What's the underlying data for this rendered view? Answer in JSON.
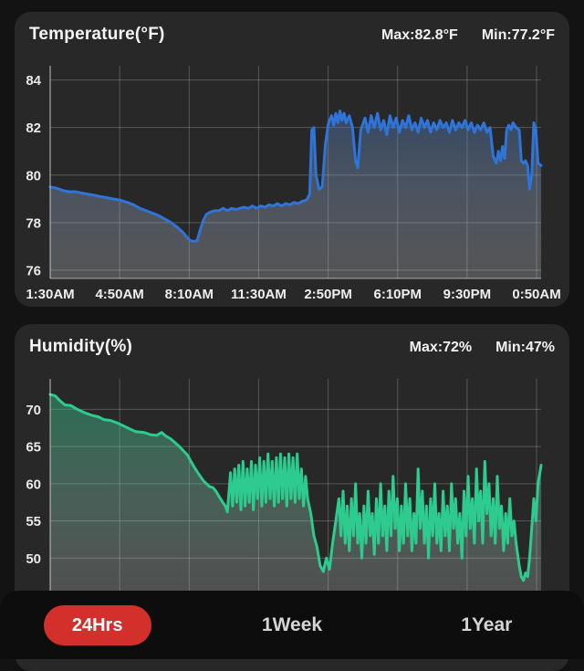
{
  "page": {
    "background": "#131313",
    "card_background": "#282828",
    "tabbar_background": "#0d0d0d"
  },
  "chart_data": [
    {
      "type": "area",
      "title": "Temperature(°F)",
      "max_label": "Max:82.8°F",
      "min_label": "Min:77.2°F",
      "line_color": "#2f74d8",
      "fill_top": "rgba(70,115,180,0.42)",
      "fill_bottom": "rgba(235,238,245,0.22)",
      "x_domain": [
        0,
        23.55
      ],
      "x_ticks": {
        "values": [
          0,
          3.333,
          6.667,
          10,
          13.333,
          16.667,
          20,
          23.333
        ],
        "labels": [
          "1:30AM",
          "4:50AM",
          "8:10AM",
          "11:30AM",
          "2:50PM",
          "6:10PM",
          "9:30PM",
          "0:50AM"
        ]
      },
      "y_domain": [
        75.65,
        84.6
      ],
      "y_ticks": [
        84,
        82,
        80,
        78,
        76
      ],
      "points": [
        [
          0,
          79.5
        ],
        [
          0.3,
          79.45
        ],
        [
          0.6,
          79.35
        ],
        [
          0.9,
          79.3
        ],
        [
          1.2,
          79.3
        ],
        [
          1.5,
          79.25
        ],
        [
          1.8,
          79.2
        ],
        [
          2.1,
          79.15
        ],
        [
          2.4,
          79.1
        ],
        [
          2.7,
          79.05
        ],
        [
          3,
          79
        ],
        [
          3.33,
          78.95
        ],
        [
          3.7,
          78.85
        ],
        [
          4,
          78.75
        ],
        [
          4.3,
          78.6
        ],
        [
          4.6,
          78.5
        ],
        [
          4.9,
          78.4
        ],
        [
          5.2,
          78.3
        ],
        [
          5.5,
          78.15
        ],
        [
          5.8,
          78
        ],
        [
          6.1,
          77.8
        ],
        [
          6.35,
          77.6
        ],
        [
          6.55,
          77.4
        ],
        [
          6.7,
          77.25
        ],
        [
          6.9,
          77.2
        ],
        [
          7.05,
          77.25
        ],
        [
          7.2,
          77.7
        ],
        [
          7.35,
          78.1
        ],
        [
          7.5,
          78.35
        ],
        [
          7.7,
          78.45
        ],
        [
          7.9,
          78.5
        ],
        [
          8.1,
          78.5
        ],
        [
          8.3,
          78.6
        ],
        [
          8.5,
          78.5
        ],
        [
          8.7,
          78.6
        ],
        [
          8.9,
          78.55
        ],
        [
          9.1,
          78.6
        ],
        [
          9.3,
          78.65
        ],
        [
          9.5,
          78.6
        ],
        [
          9.7,
          78.7
        ],
        [
          9.9,
          78.6
        ],
        [
          10.1,
          78.7
        ],
        [
          10.3,
          78.65
        ],
        [
          10.5,
          78.75
        ],
        [
          10.7,
          78.7
        ],
        [
          10.9,
          78.8
        ],
        [
          11.1,
          78.7
        ],
        [
          11.3,
          78.8
        ],
        [
          11.5,
          78.75
        ],
        [
          11.7,
          78.85
        ],
        [
          11.9,
          78.8
        ],
        [
          12.1,
          78.9
        ],
        [
          12.3,
          78.95
        ],
        [
          12.45,
          79.2
        ],
        [
          12.55,
          81.9
        ],
        [
          12.65,
          82
        ],
        [
          12.75,
          80
        ],
        [
          12.9,
          79.4
        ],
        [
          13.05,
          79.5
        ],
        [
          13.2,
          81.3
        ],
        [
          13.35,
          82.2
        ],
        [
          13.5,
          82.5
        ],
        [
          13.6,
          82.1
        ],
        [
          13.7,
          82.6
        ],
        [
          13.8,
          82.2
        ],
        [
          13.9,
          82.7
        ],
        [
          14,
          82.3
        ],
        [
          14.1,
          82.6
        ],
        [
          14.2,
          82.2
        ],
        [
          14.35,
          82.5
        ],
        [
          14.5,
          82
        ],
        [
          14.65,
          80.6
        ],
        [
          14.75,
          80.3
        ],
        [
          14.9,
          81.9
        ],
        [
          15.1,
          82.4
        ],
        [
          15.25,
          81.8
        ],
        [
          15.4,
          82.5
        ],
        [
          15.55,
          82
        ],
        [
          15.7,
          82.6
        ],
        [
          15.85,
          81.9
        ],
        [
          16,
          82.3
        ],
        [
          16.15,
          81.7
        ],
        [
          16.3,
          82.5
        ],
        [
          16.45,
          82
        ],
        [
          16.6,
          82.4
        ],
        [
          16.75,
          81.8
        ],
        [
          16.9,
          82.3
        ],
        [
          17.05,
          82
        ],
        [
          17.2,
          82.5
        ],
        [
          17.35,
          81.9
        ],
        [
          17.5,
          82.2
        ],
        [
          17.65,
          81.8
        ],
        [
          17.8,
          82.4
        ],
        [
          17.95,
          82
        ],
        [
          18.1,
          82.3
        ],
        [
          18.25,
          81.8
        ],
        [
          18.4,
          82.2
        ],
        [
          18.55,
          81.9
        ],
        [
          18.7,
          82.3
        ],
        [
          18.85,
          82
        ],
        [
          19,
          82.2
        ],
        [
          19.15,
          81.8
        ],
        [
          19.3,
          82.3
        ],
        [
          19.45,
          81.9
        ],
        [
          19.6,
          82.2
        ],
        [
          19.75,
          82
        ],
        [
          19.9,
          82.3
        ],
        [
          20.05,
          81.9
        ],
        [
          20.2,
          82.2
        ],
        [
          20.35,
          81.8
        ],
        [
          20.5,
          82.1
        ],
        [
          20.65,
          81.9
        ],
        [
          20.8,
          82.2
        ],
        [
          20.95,
          81.8
        ],
        [
          21.1,
          82
        ],
        [
          21.25,
          80.8
        ],
        [
          21.4,
          80.5
        ],
        [
          21.5,
          81
        ],
        [
          21.6,
          80.6
        ],
        [
          21.7,
          81.2
        ],
        [
          21.8,
          80.7
        ],
        [
          21.9,
          81.9
        ],
        [
          22,
          82.1
        ],
        [
          22.1,
          81.9
        ],
        [
          22.2,
          82.2
        ],
        [
          22.35,
          82
        ],
        [
          22.5,
          81.9
        ],
        [
          22.6,
          80.6
        ],
        [
          22.7,
          80.5
        ],
        [
          22.8,
          80.6
        ],
        [
          22.9,
          80.4
        ],
        [
          23,
          79.4
        ],
        [
          23.1,
          80
        ],
        [
          23.2,
          82.2
        ],
        [
          23.3,
          81.9
        ],
        [
          23.4,
          80.5
        ],
        [
          23.55,
          80.4
        ]
      ]
    },
    {
      "type": "area",
      "title": "Humidity(%)",
      "max_label": "Max:72%",
      "min_label": "Min:47%",
      "line_color": "#2ecb8e",
      "fill_top": "rgba(46,203,142,0.42)",
      "fill_bottom": "rgba(235,238,240,0.20)",
      "x_domain": [
        0,
        23.55
      ],
      "x_ticks": {
        "values": [
          0,
          3.333,
          6.667,
          10,
          13.333,
          16.667,
          20,
          23.333
        ],
        "labels": []
      },
      "y_domain": [
        45.5,
        74.1
      ],
      "y_ticks": [
        70,
        65,
        60,
        55,
        50
      ],
      "points": [
        [
          0,
          72
        ],
        [
          0.25,
          71.8
        ],
        [
          0.45,
          71.2
        ],
        [
          0.7,
          70.6
        ],
        [
          1,
          70.5
        ],
        [
          1.3,
          70
        ],
        [
          1.7,
          69.5
        ],
        [
          2,
          69.2
        ],
        [
          2.3,
          69
        ],
        [
          2.6,
          68.6
        ],
        [
          2.9,
          68.5
        ],
        [
          3.2,
          68.2
        ],
        [
          3.5,
          67.8
        ],
        [
          3.8,
          67.4
        ],
        [
          4.1,
          67
        ],
        [
          4.5,
          66.9
        ],
        [
          4.8,
          66.6
        ],
        [
          5.1,
          66.5
        ],
        [
          5.35,
          66.9
        ],
        [
          5.55,
          66.4
        ],
        [
          5.8,
          66
        ],
        [
          6,
          65.5
        ],
        [
          6.2,
          65
        ],
        [
          6.4,
          64.4
        ],
        [
          6.6,
          63.8
        ],
        [
          6.75,
          63
        ],
        [
          6.9,
          62.3
        ],
        [
          7.05,
          61.6
        ],
        [
          7.2,
          61
        ],
        [
          7.35,
          60.4
        ],
        [
          7.5,
          60
        ],
        [
          7.65,
          59.6
        ],
        [
          7.8,
          59.5
        ],
        [
          7.95,
          59
        ],
        [
          8.1,
          58.3
        ],
        [
          8.25,
          57.6
        ],
        [
          8.4,
          57
        ],
        [
          8.5,
          56.2
        ],
        [
          8.65,
          61.5
        ],
        [
          8.75,
          57
        ],
        [
          8.85,
          62
        ],
        [
          8.95,
          57.5
        ],
        [
          9.05,
          62.5
        ],
        [
          9.15,
          56.5
        ],
        [
          9.25,
          63
        ],
        [
          9.35,
          57
        ],
        [
          9.45,
          62
        ],
        [
          9.55,
          57.5
        ],
        [
          9.65,
          63
        ],
        [
          9.75,
          56.5
        ],
        [
          9.85,
          62.5
        ],
        [
          9.95,
          58
        ],
        [
          10.05,
          63.5
        ],
        [
          10.15,
          57
        ],
        [
          10.25,
          63
        ],
        [
          10.35,
          57.5
        ],
        [
          10.45,
          64
        ],
        [
          10.55,
          58
        ],
        [
          10.65,
          63
        ],
        [
          10.75,
          57
        ],
        [
          10.85,
          63.5
        ],
        [
          10.95,
          57.5
        ],
        [
          11.05,
          64
        ],
        [
          11.15,
          58
        ],
        [
          11.25,
          63.5
        ],
        [
          11.35,
          57
        ],
        [
          11.45,
          64
        ],
        [
          11.55,
          58
        ],
        [
          11.65,
          63.5
        ],
        [
          11.75,
          57.5
        ],
        [
          11.85,
          64
        ],
        [
          11.95,
          58
        ],
        [
          12.05,
          62
        ],
        [
          12.15,
          57
        ],
        [
          12.25,
          61
        ],
        [
          12.35,
          58
        ],
        [
          12.5,
          56
        ],
        [
          12.65,
          53
        ],
        [
          12.8,
          51.5
        ],
        [
          12.95,
          49
        ],
        [
          13.1,
          48.2
        ],
        [
          13.25,
          50
        ],
        [
          13.4,
          48.5
        ],
        [
          13.55,
          52
        ],
        [
          13.7,
          55
        ],
        [
          13.85,
          58
        ],
        [
          13.95,
          53
        ],
        [
          14.05,
          59
        ],
        [
          14.15,
          52
        ],
        [
          14.25,
          57
        ],
        [
          14.35,
          51
        ],
        [
          14.45,
          58
        ],
        [
          14.55,
          53
        ],
        [
          14.65,
          60
        ],
        [
          14.75,
          52
        ],
        [
          14.85,
          56
        ],
        [
          14.95,
          50
        ],
        [
          15.05,
          57
        ],
        [
          15.15,
          52
        ],
        [
          15.25,
          59
        ],
        [
          15.35,
          53
        ],
        [
          15.45,
          56
        ],
        [
          15.55,
          50.5
        ],
        [
          15.65,
          58
        ],
        [
          15.75,
          52
        ],
        [
          15.85,
          60
        ],
        [
          15.95,
          53
        ],
        [
          16.05,
          57
        ],
        [
          16.15,
          51
        ],
        [
          16.25,
          59
        ],
        [
          16.35,
          53
        ],
        [
          16.45,
          61
        ],
        [
          16.55,
          54
        ],
        [
          16.65,
          58
        ],
        [
          16.75,
          51
        ],
        [
          16.85,
          57
        ],
        [
          16.95,
          52
        ],
        [
          17.05,
          60
        ],
        [
          17.15,
          53
        ],
        [
          17.25,
          58
        ],
        [
          17.35,
          51
        ],
        [
          17.45,
          56
        ],
        [
          17.55,
          52
        ],
        [
          17.65,
          62
        ],
        [
          17.75,
          54
        ],
        [
          17.85,
          59
        ],
        [
          17.95,
          52
        ],
        [
          18.05,
          57
        ],
        [
          18.15,
          50
        ],
        [
          18.25,
          58
        ],
        [
          18.35,
          53
        ],
        [
          18.45,
          60
        ],
        [
          18.55,
          52
        ],
        [
          18.65,
          56
        ],
        [
          18.75,
          51
        ],
        [
          18.85,
          59
        ],
        [
          18.95,
          53
        ],
        [
          19.05,
          57
        ],
        [
          19.15,
          51
        ],
        [
          19.25,
          60
        ],
        [
          19.35,
          54
        ],
        [
          19.45,
          58
        ],
        [
          19.55,
          52
        ],
        [
          19.65,
          56
        ],
        [
          19.75,
          50
        ],
        [
          19.85,
          59
        ],
        [
          19.95,
          53
        ],
        [
          20.05,
          61
        ],
        [
          20.15,
          54
        ],
        [
          20.25,
          58
        ],
        [
          20.35,
          52
        ],
        [
          20.45,
          62
        ],
        [
          20.55,
          55
        ],
        [
          20.65,
          59
        ],
        [
          20.75,
          52
        ],
        [
          20.85,
          63
        ],
        [
          20.95,
          56
        ],
        [
          21.05,
          60
        ],
        [
          21.15,
          53
        ],
        [
          21.25,
          58
        ],
        [
          21.35,
          52
        ],
        [
          21.45,
          61
        ],
        [
          21.55,
          54
        ],
        [
          21.65,
          57
        ],
        [
          21.75,
          51
        ],
        [
          21.85,
          56
        ],
        [
          21.95,
          52
        ],
        [
          22.05,
          58
        ],
        [
          22.15,
          53
        ],
        [
          22.25,
          55
        ],
        [
          22.35,
          52
        ],
        [
          22.5,
          49
        ],
        [
          22.6,
          47.5
        ],
        [
          22.7,
          47
        ],
        [
          22.8,
          48
        ],
        [
          22.9,
          47.5
        ],
        [
          23,
          50
        ],
        [
          23.1,
          54
        ],
        [
          23.2,
          58
        ],
        [
          23.3,
          55
        ],
        [
          23.4,
          60
        ],
        [
          23.55,
          62.5
        ]
      ]
    }
  ],
  "tabbar": {
    "active_color": "#d3302b",
    "items": [
      {
        "label": "24Hrs",
        "active": true
      },
      {
        "label": "1Week",
        "active": false
      },
      {
        "label": "1Year",
        "active": false
      }
    ]
  }
}
